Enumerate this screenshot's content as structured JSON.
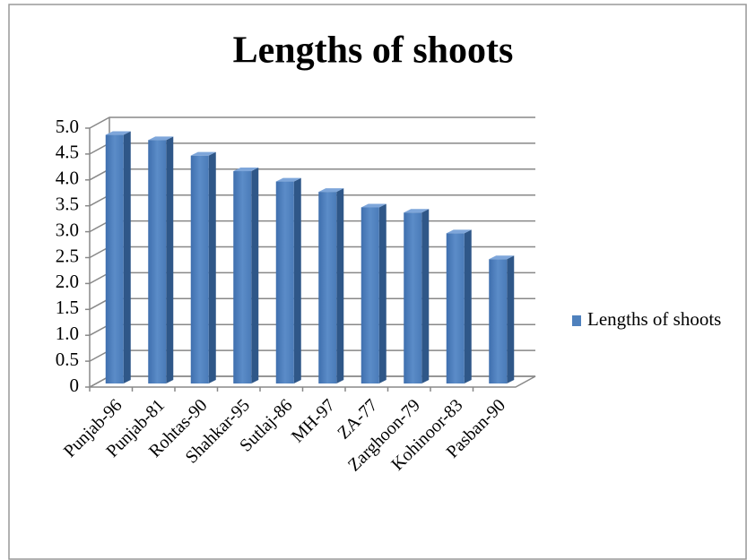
{
  "chart_data": {
    "type": "bar",
    "title": "Lengths of shoots",
    "categories": [
      "Punjab-96",
      "Punjab-81",
      "Rohtas-90",
      "Shahkar-95",
      "Sutlaj-86",
      "MH-97",
      "ZA-77",
      "Zarghoon-79",
      "Kohinoor-83",
      "Pasban-90"
    ],
    "series": [
      {
        "name": "Lengths of shoots",
        "color": "#4f81bd",
        "values": [
          4.8,
          4.7,
          4.4,
          4.1,
          3.9,
          3.7,
          3.4,
          3.3,
          2.9,
          2.4
        ]
      }
    ],
    "ylim": [
      0,
      5
    ],
    "yticks": [
      0,
      0.5,
      {
        "value": 1,
        "label": "1.0"
      },
      1.5,
      {
        "value": 2,
        "label": "2.0"
      },
      2.5,
      {
        "value": 3,
        "label": "3.0"
      },
      3.5,
      {
        "value": 4,
        "label": "4.0"
      },
      4.5,
      {
        "value": 5,
        "label": "5.0"
      }
    ],
    "grid": true,
    "legend": "right"
  }
}
